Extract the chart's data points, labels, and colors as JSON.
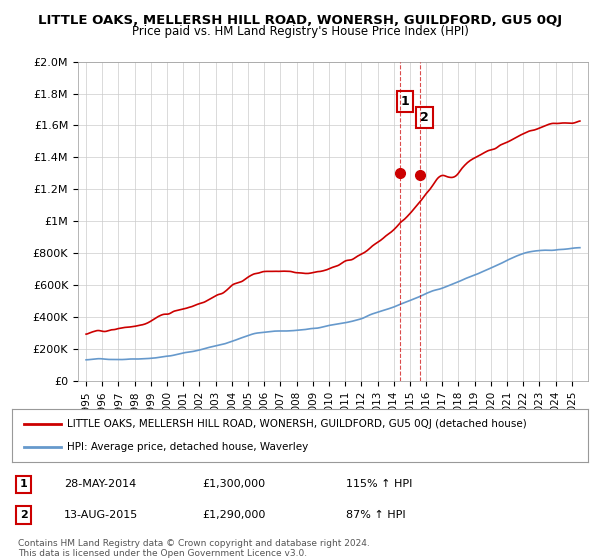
{
  "title": "LITTLE OAKS, MELLERSH HILL ROAD, WONERSH, GUILDFORD, GU5 0QJ",
  "subtitle": "Price paid vs. HM Land Registry's House Price Index (HPI)",
  "legend_line1": "LITTLE OAKS, MELLERSH HILL ROAD, WONERSH, GUILDFORD, GU5 0QJ (detached house)",
  "legend_line2": "HPI: Average price, detached house, Waverley",
  "annotation1_label": "1",
  "annotation1_date": "28-MAY-2014",
  "annotation1_price": "£1,300,000",
  "annotation1_hpi": "115% ↑ HPI",
  "annotation1_year": 2014.4,
  "annotation1_value": 1300000,
  "annotation2_label": "2",
  "annotation2_date": "13-AUG-2015",
  "annotation2_price": "£1,290,000",
  "annotation2_hpi": "87% ↑ HPI",
  "annotation2_year": 2015.6,
  "annotation2_value": 1290000,
  "footer1": "Contains HM Land Registry data © Crown copyright and database right 2024.",
  "footer2": "This data is licensed under the Open Government Licence v3.0.",
  "red_color": "#cc0000",
  "blue_color": "#6699cc",
  "vline_color": "#cc0000",
  "grid_color": "#cccccc",
  "background_color": "#ffffff",
  "ylim_min": 0,
  "ylim_max": 2000000,
  "yticks": [
    0,
    200000,
    400000,
    600000,
    800000,
    1000000,
    1200000,
    1400000,
    1600000,
    1800000,
    2000000
  ]
}
